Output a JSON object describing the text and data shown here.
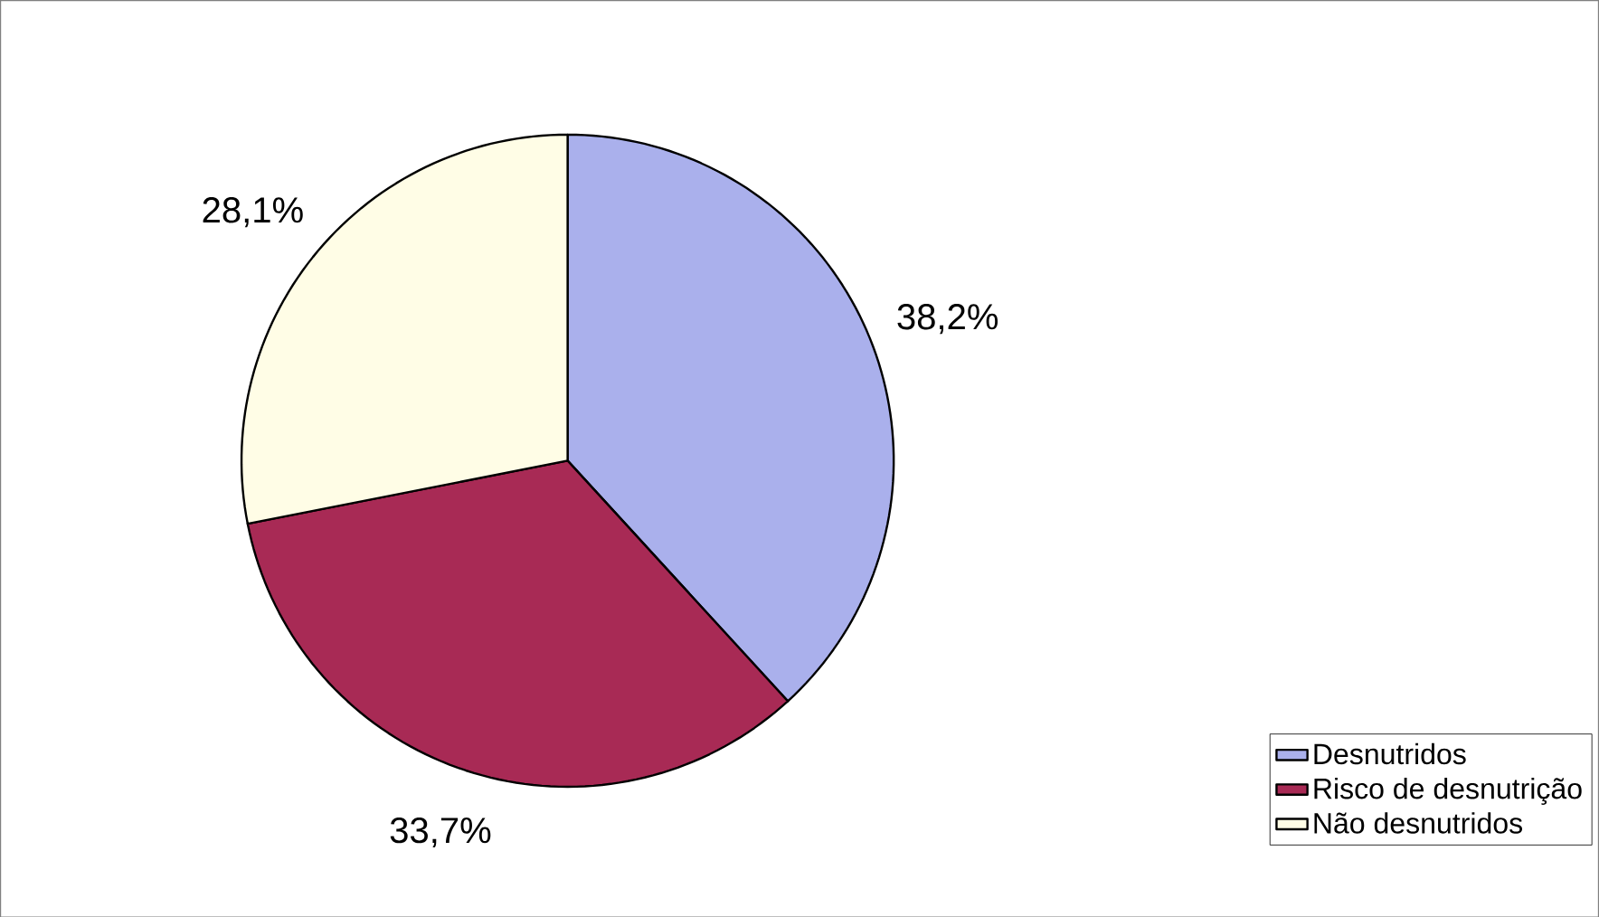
{
  "chart_data": {
    "type": "pie",
    "categories": [
      "Desnutridos",
      "Risco de desnutrição",
      "Não desnutridos"
    ],
    "values": [
      38.2,
      33.7,
      28.1
    ],
    "value_labels": [
      "38,2%",
      "33,7%",
      "28,1%"
    ],
    "colors": [
      "#aab0ec",
      "#a82a55",
      "#fffde6"
    ],
    "legend": "right"
  }
}
